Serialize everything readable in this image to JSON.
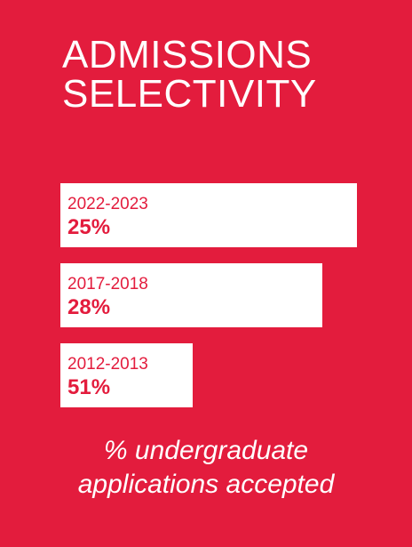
{
  "title": {
    "line1": "ADMISSIONS",
    "line2": "SELECTIVITY"
  },
  "caption": {
    "line1": "% undergraduate",
    "line2": "applications accepted"
  },
  "colors": {
    "background": "#e31c3d",
    "bar": "#ffffff",
    "bar_text": "#e31c3d",
    "title_text": "#ffffff"
  },
  "chart_data": {
    "type": "bar",
    "orientation": "horizontal",
    "categories": [
      "2022-2023",
      "2017-2018",
      "2012-2013"
    ],
    "values": [
      25,
      28,
      51
    ],
    "value_labels": [
      "25%",
      "28%",
      "51%"
    ],
    "title": "ADMISSIONS SELECTIVITY",
    "xlabel": "",
    "ylabel": "% undergraduate applications accepted"
  }
}
